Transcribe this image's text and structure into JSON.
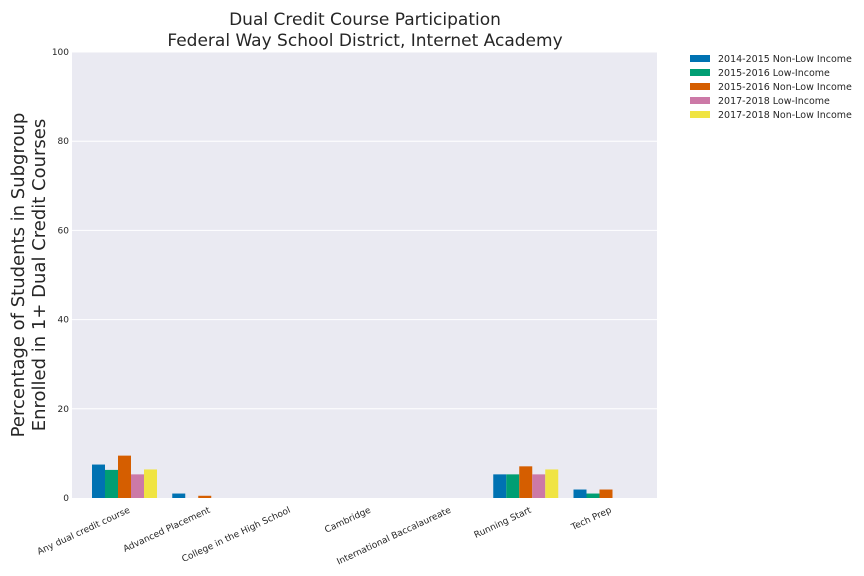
{
  "chart_data": {
    "type": "bar",
    "title": "Dual Credit Course Participation",
    "subtitle": "Federal Way School District, Internet Academy",
    "ylabel_line1": "Percentage of Students in Subgroup",
    "ylabel_line2": "Enrolled in 1+ Dual Credit Courses",
    "xlabel": "",
    "ylim": [
      0,
      100
    ],
    "yticks": [
      0,
      20,
      40,
      60,
      80,
      100
    ],
    "grid": true,
    "legend_position": "outside-top-right",
    "categories": [
      "Any dual credit course",
      "Advanced Placement",
      "College in the High School",
      "Cambridge",
      "International Baccalaureate",
      "Running Start",
      "Tech Prep"
    ],
    "series": [
      {
        "name": "2014-2015 Non-Low Income",
        "color": "#0072b2",
        "values": [
          7.5,
          1.0,
          0,
          0,
          0,
          5.3,
          1.9
        ]
      },
      {
        "name": "2015-2016 Low-Income",
        "color": "#009e73",
        "values": [
          6.3,
          0,
          0,
          0,
          0,
          5.3,
          1.0
        ]
      },
      {
        "name": "2015-2016 Non-Low Income",
        "color": "#d55e00",
        "values": [
          9.5,
          0.5,
          0,
          0,
          0,
          7.1,
          1.9
        ]
      },
      {
        "name": "2017-2018 Low-Income",
        "color": "#cc79a7",
        "values": [
          5.3,
          0,
          0,
          0,
          0,
          5.3,
          0
        ]
      },
      {
        "name": "2017-2018 Non-Low Income",
        "color": "#f0e442",
        "values": [
          6.4,
          0,
          0,
          0,
          0,
          6.4,
          0
        ]
      }
    ]
  }
}
